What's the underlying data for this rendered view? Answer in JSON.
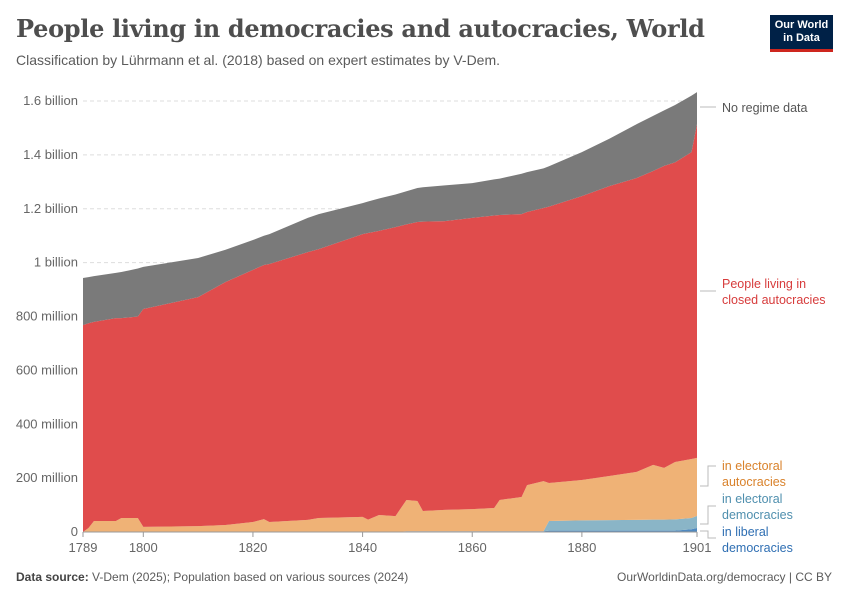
{
  "header": {
    "title": "People living in democracies and autocracies, World",
    "subtitle": "Classification by Lührmann et al. (2018) based on expert estimates by V-Dem.",
    "logo_text": "Our World in Data"
  },
  "footer": {
    "source_label": "Data source:",
    "source_text": "V-Dem (2025); Population based on various sources (2024)",
    "right_text": "OurWorldinData.org/democracy | CC BY"
  },
  "chart_data": {
    "type": "area",
    "stacked": true,
    "title": "People living in democracies and autocracies, World",
    "xlim": [
      1789,
      1901
    ],
    "ylim": [
      0,
      1600
    ],
    "y_unit": "million",
    "x_ticks": [
      "1789",
      "1800",
      "1820",
      "1840",
      "1860",
      "1880",
      "1901"
    ],
    "y_ticks": [
      {
        "value": 0,
        "label": "0"
      },
      {
        "value": 200,
        "label": "200 million"
      },
      {
        "value": 400,
        "label": "400 million"
      },
      {
        "value": 600,
        "label": "600 million"
      },
      {
        "value": 800,
        "label": "800 million"
      },
      {
        "value": 1000,
        "label": "1 billion"
      },
      {
        "value": 1200,
        "label": "1.2 billion"
      },
      {
        "value": 1400,
        "label": "1.4 billion"
      },
      {
        "value": 1600,
        "label": "1.6 billion"
      }
    ],
    "grid": "horizontal dashed",
    "legend": "right, inline labels",
    "x": [
      1789,
      1790,
      1791,
      1795,
      1796,
      1799,
      1800,
      1810,
      1815,
      1820,
      1822,
      1823,
      1830,
      1832,
      1840,
      1841,
      1843,
      1846,
      1848,
      1850,
      1851,
      1855,
      1860,
      1864,
      1865,
      1869,
      1870,
      1873,
      1874,
      1880,
      1885,
      1890,
      1893,
      1895,
      1897,
      1900,
      1901
    ],
    "series": [
      {
        "name": "in liberal democracies",
        "color": "#4c87bf",
        "values": [
          0,
          0,
          0,
          0,
          0,
          0,
          0,
          0,
          0,
          0,
          0,
          0,
          0,
          0,
          0,
          0,
          0,
          0,
          3,
          3,
          3,
          3,
          3,
          3,
          3,
          3,
          3,
          3,
          5,
          5,
          5,
          5,
          5,
          5,
          5,
          10,
          15
        ]
      },
      {
        "name": "in electoral democracies",
        "color": "#88b4c6",
        "values": [
          0,
          0,
          0,
          0,
          0,
          0,
          0,
          0,
          0,
          0,
          0,
          0,
          0,
          0,
          0,
          0,
          0,
          0,
          0,
          0,
          0,
          0,
          0,
          0,
          0,
          0,
          0,
          0,
          36,
          38,
          39,
          40,
          41,
          41,
          42,
          42,
          45
        ]
      },
      {
        "name": "in electoral autocracies",
        "color": "#efb073",
        "values": [
          0,
          15,
          41,
          41,
          52,
          52,
          19,
          22,
          26,
          37,
          48,
          37,
          45,
          52,
          56,
          46,
          63,
          59,
          116,
          112,
          75,
          79,
          82,
          86,
          116,
          127,
          171,
          186,
          141,
          150,
          164,
          178,
          203,
          192,
          213,
          219,
          215
        ]
      },
      {
        "name": "People living in closed autocracies",
        "color": "#df4848",
        "values": [
          768,
          760,
          739,
          753,
          742,
          748,
          809,
          850,
          902,
          936,
          943,
          958,
          994,
          998,
          1050,
          1064,
          1055,
          1073,
          1023,
          1036,
          1074,
          1072,
          1081,
          1086,
          1058,
          1050,
          1014,
          1014,
          1026,
          1054,
          1076,
          1091,
          1091,
          1121,
          1112,
          1139,
          1239
        ]
      },
      {
        "name": "No regime data",
        "color": "#777777",
        "values": [
          175,
          171,
          170,
          168,
          171,
          178,
          156,
          145,
          120,
          111,
          109,
          111,
          127,
          130,
          115,
          117,
          120,
          121,
          123,
          126,
          128,
          133,
          129,
          134,
          135,
          150,
          148,
          147,
          150,
          163,
          176,
          200,
          205,
          206,
          213,
          210,
          119
        ]
      }
    ],
    "labels": {
      "no_data": [
        "No regime data"
      ],
      "closed": [
        "People living in",
        "closed autocracies"
      ],
      "ea": [
        "in electoral",
        "autocracies"
      ],
      "ed": [
        "in electoral",
        "democracies"
      ],
      "ld": [
        "in liberal",
        "democracies"
      ]
    }
  }
}
